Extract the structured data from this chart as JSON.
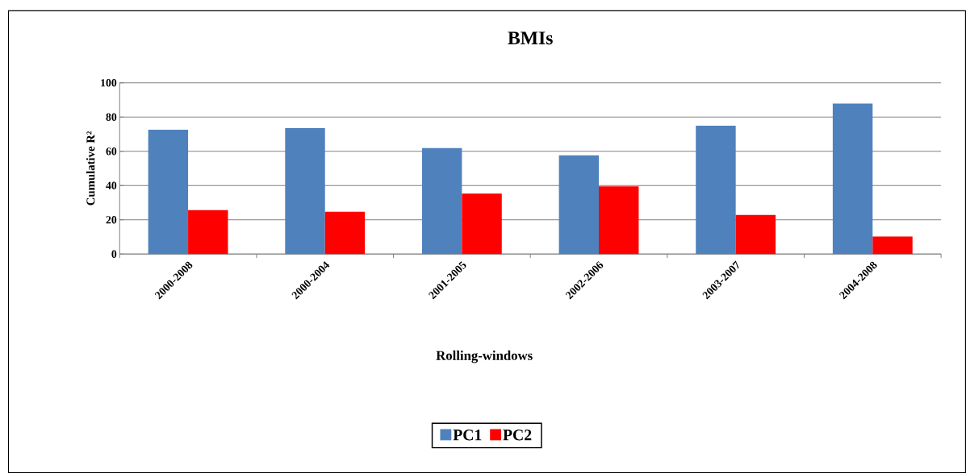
{
  "chart_data": {
    "type": "bar",
    "title": "BMIs",
    "xlabel": "Rolling-windows",
    "ylabel": "Cumulative R²",
    "categories": [
      "2000-2008",
      "2000-2004",
      "2001-2005",
      "2002-2006",
      "2003-2007",
      "2004-2008"
    ],
    "series": [
      {
        "name": "PC1",
        "color": "#4f81bd",
        "values": [
          72.6,
          73.5,
          61.9,
          57.7,
          74.9,
          87.9
        ]
      },
      {
        "name": "PC2",
        "color": "#ff0000",
        "values": [
          25.6,
          24.7,
          35.3,
          39.5,
          22.8,
          10.2
        ]
      }
    ],
    "ylim": [
      0,
      100
    ],
    "yticks": [
      0,
      20,
      40,
      60,
      80,
      100
    ],
    "grid": "y",
    "legend": "bottom"
  }
}
